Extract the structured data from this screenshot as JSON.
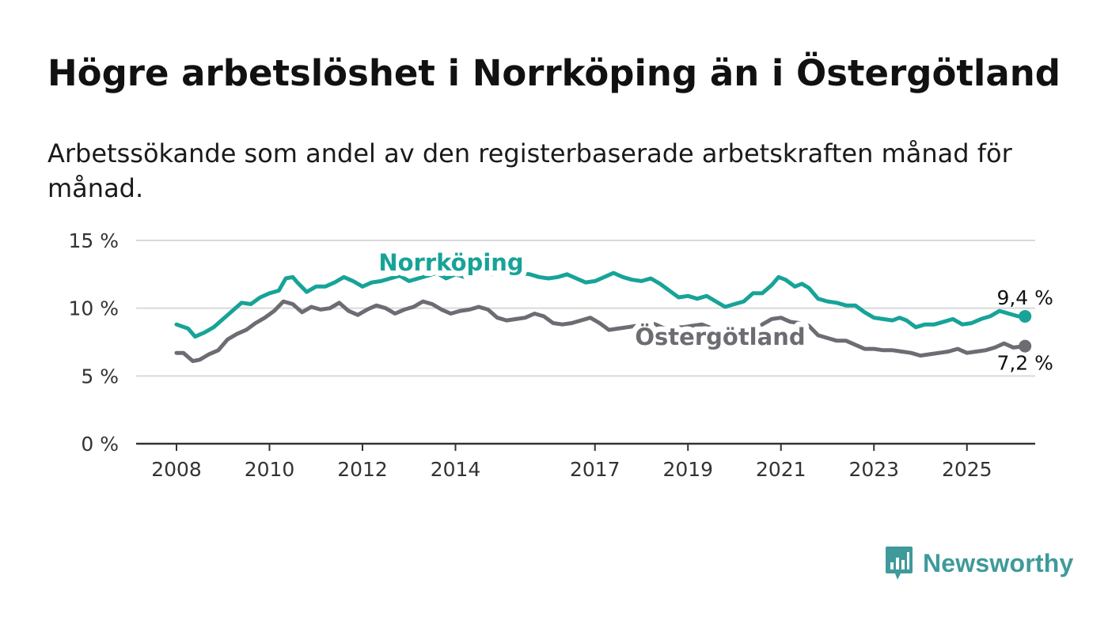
{
  "title": "Högre arbetslöshet i Norrköping än i Östergötland",
  "subtitle": "Arbetssökande som andel av den registerbaserade arbetskraften månad för månad.",
  "brand": {
    "name": "Newsworthy",
    "color": "#3f9a9b",
    "icon": "bar-chart-speech-bubble-icon"
  },
  "colors": {
    "norrkoping": "#17a398",
    "ostergotland": "#6e6b73",
    "grid": "#d9d9d9",
    "axis": "#333333"
  },
  "chart_data": {
    "type": "line",
    "title": "Högre arbetslöshet i Norrköping än i Östergötland",
    "subtitle": "Arbetssökande som andel av den registerbaserade arbetskraften månad för månad.",
    "xlim": [
      2007.5,
      2027.0
    ],
    "ylim": [
      0,
      15
    ],
    "y_ticks": [
      0,
      5,
      10,
      15
    ],
    "y_tick_labels": [
      "0 %",
      "5 %",
      "10 %",
      "15 %"
    ],
    "x_ticks": [
      2008,
      2010,
      2012,
      2014,
      2017,
      2019,
      2021,
      2023,
      2025
    ],
    "x_tick_labels": [
      "2008",
      "2010",
      "2012",
      "2014",
      "2017",
      "2019",
      "2021",
      "2023",
      "2025"
    ],
    "grid": true,
    "legend": "inline labels on lines",
    "series": [
      {
        "name": "Norrköping",
        "color": "#17a398",
        "end_label": "9,4 %",
        "points": [
          [
            2008.0,
            8.8
          ],
          [
            2008.25,
            8.5
          ],
          [
            2008.4,
            7.9
          ],
          [
            2008.6,
            8.2
          ],
          [
            2008.8,
            8.6
          ],
          [
            2009.0,
            9.2
          ],
          [
            2009.2,
            9.8
          ],
          [
            2009.4,
            10.4
          ],
          [
            2009.6,
            10.3
          ],
          [
            2009.8,
            10.8
          ],
          [
            2010.0,
            11.1
          ],
          [
            2010.2,
            11.3
          ],
          [
            2010.35,
            12.2
          ],
          [
            2010.5,
            12.3
          ],
          [
            2010.6,
            11.9
          ],
          [
            2010.8,
            11.2
          ],
          [
            2011.0,
            11.6
          ],
          [
            2011.2,
            11.6
          ],
          [
            2011.4,
            11.9
          ],
          [
            2011.6,
            12.3
          ],
          [
            2011.8,
            12.0
          ],
          [
            2012.0,
            11.6
          ],
          [
            2012.2,
            11.9
          ],
          [
            2012.4,
            12.0
          ],
          [
            2012.6,
            12.2
          ],
          [
            2012.8,
            12.4
          ],
          [
            2013.0,
            12.0
          ],
          [
            2013.2,
            12.2
          ],
          [
            2013.4,
            12.4
          ],
          [
            2013.6,
            12.6
          ],
          [
            2013.8,
            12.2
          ],
          [
            2014.0,
            12.5
          ],
          [
            2014.2,
            12.3
          ],
          [
            2014.4,
            12.6
          ],
          [
            2014.6,
            12.8
          ],
          [
            2014.8,
            12.5
          ],
          [
            2015.0,
            12.7
          ],
          [
            2015.2,
            12.8
          ],
          [
            2015.4,
            12.6
          ],
          [
            2015.6,
            12.5
          ],
          [
            2015.8,
            12.3
          ],
          [
            2016.0,
            12.2
          ],
          [
            2016.2,
            12.3
          ],
          [
            2016.4,
            12.5
          ],
          [
            2016.6,
            12.2
          ],
          [
            2016.8,
            11.9
          ],
          [
            2017.0,
            12.0
          ],
          [
            2017.2,
            12.3
          ],
          [
            2017.4,
            12.6
          ],
          [
            2017.6,
            12.3
          ],
          [
            2017.8,
            12.1
          ],
          [
            2018.0,
            12.0
          ],
          [
            2018.2,
            12.2
          ],
          [
            2018.4,
            11.8
          ],
          [
            2018.6,
            11.3
          ],
          [
            2018.8,
            10.8
          ],
          [
            2019.0,
            10.9
          ],
          [
            2019.2,
            10.7
          ],
          [
            2019.4,
            10.9
          ],
          [
            2019.6,
            10.5
          ],
          [
            2019.8,
            10.1
          ],
          [
            2020.0,
            10.3
          ],
          [
            2020.2,
            10.5
          ],
          [
            2020.4,
            11.1
          ],
          [
            2020.6,
            11.1
          ],
          [
            2020.8,
            11.7
          ],
          [
            2020.95,
            12.3
          ],
          [
            2021.1,
            12.1
          ],
          [
            2021.3,
            11.6
          ],
          [
            2021.45,
            11.8
          ],
          [
            2021.6,
            11.5
          ],
          [
            2021.8,
            10.7
          ],
          [
            2022.0,
            10.5
          ],
          [
            2022.2,
            10.4
          ],
          [
            2022.4,
            10.2
          ],
          [
            2022.6,
            10.2
          ],
          [
            2022.8,
            9.7
          ],
          [
            2023.0,
            9.3
          ],
          [
            2023.2,
            9.2
          ],
          [
            2023.4,
            9.1
          ],
          [
            2023.55,
            9.3
          ],
          [
            2023.7,
            9.1
          ],
          [
            2023.9,
            8.6
          ],
          [
            2024.1,
            8.8
          ],
          [
            2024.3,
            8.8
          ],
          [
            2024.5,
            9.0
          ],
          [
            2024.7,
            9.2
          ],
          [
            2024.9,
            8.8
          ],
          [
            2025.1,
            8.9
          ],
          [
            2025.3,
            9.2
          ],
          [
            2025.5,
            9.4
          ],
          [
            2025.7,
            9.8
          ],
          [
            2025.9,
            9.6
          ],
          [
            2026.1,
            9.4
          ],
          [
            2026.25,
            9.4
          ]
        ]
      },
      {
        "name": "Östergötland",
        "color": "#6e6b73",
        "end_label": "7,2 %",
        "points": [
          [
            2008.0,
            6.7
          ],
          [
            2008.15,
            6.7
          ],
          [
            2008.35,
            6.1
          ],
          [
            2008.5,
            6.2
          ],
          [
            2008.7,
            6.6
          ],
          [
            2008.9,
            6.9
          ],
          [
            2009.1,
            7.7
          ],
          [
            2009.3,
            8.1
          ],
          [
            2009.5,
            8.4
          ],
          [
            2009.7,
            8.9
          ],
          [
            2009.9,
            9.3
          ],
          [
            2010.1,
            9.8
          ],
          [
            2010.3,
            10.5
          ],
          [
            2010.5,
            10.3
          ],
          [
            2010.7,
            9.7
          ],
          [
            2010.9,
            10.1
          ],
          [
            2011.1,
            9.9
          ],
          [
            2011.3,
            10.0
          ],
          [
            2011.5,
            10.4
          ],
          [
            2011.7,
            9.8
          ],
          [
            2011.9,
            9.5
          ],
          [
            2012.1,
            9.9
          ],
          [
            2012.3,
            10.2
          ],
          [
            2012.5,
            10.0
          ],
          [
            2012.7,
            9.6
          ],
          [
            2012.9,
            9.9
          ],
          [
            2013.1,
            10.1
          ],
          [
            2013.3,
            10.5
          ],
          [
            2013.5,
            10.3
          ],
          [
            2013.7,
            9.9
          ],
          [
            2013.9,
            9.6
          ],
          [
            2014.1,
            9.8
          ],
          [
            2014.3,
            9.9
          ],
          [
            2014.5,
            10.1
          ],
          [
            2014.7,
            9.9
          ],
          [
            2014.9,
            9.3
          ],
          [
            2015.1,
            9.1
          ],
          [
            2015.3,
            9.2
          ],
          [
            2015.5,
            9.3
          ],
          [
            2015.7,
            9.6
          ],
          [
            2015.9,
            9.4
          ],
          [
            2016.1,
            8.9
          ],
          [
            2016.3,
            8.8
          ],
          [
            2016.5,
            8.9
          ],
          [
            2016.7,
            9.1
          ],
          [
            2016.9,
            9.3
          ],
          [
            2017.1,
            8.9
          ],
          [
            2017.3,
            8.4
          ],
          [
            2017.5,
            8.5
          ],
          [
            2017.7,
            8.6
          ],
          [
            2017.9,
            8.7
          ],
          [
            2018.1,
            9.0
          ],
          [
            2018.3,
            8.8
          ],
          [
            2018.5,
            8.5
          ],
          [
            2018.7,
            8.6
          ],
          [
            2018.9,
            8.6
          ],
          [
            2019.1,
            8.7
          ],
          [
            2019.3,
            8.8
          ],
          [
            2019.6,
            8.4
          ],
          [
            2019.8,
            8.2
          ],
          [
            2020.0,
            8.1
          ],
          [
            2020.2,
            7.8
          ],
          [
            2020.4,
            8.2
          ],
          [
            2020.6,
            8.8
          ],
          [
            2020.8,
            9.2
          ],
          [
            2021.0,
            9.3
          ],
          [
            2021.2,
            9.0
          ],
          [
            2021.4,
            8.9
          ],
          [
            2021.6,
            8.7
          ],
          [
            2021.8,
            8.0
          ],
          [
            2022.0,
            7.8
          ],
          [
            2022.2,
            7.6
          ],
          [
            2022.4,
            7.6
          ],
          [
            2022.6,
            7.3
          ],
          [
            2022.8,
            7.0
          ],
          [
            2023.0,
            7.0
          ],
          [
            2023.2,
            6.9
          ],
          [
            2023.4,
            6.9
          ],
          [
            2023.6,
            6.8
          ],
          [
            2023.8,
            6.7
          ],
          [
            2024.0,
            6.5
          ],
          [
            2024.2,
            6.6
          ],
          [
            2024.4,
            6.7
          ],
          [
            2024.6,
            6.8
          ],
          [
            2024.8,
            7.0
          ],
          [
            2025.0,
            6.7
          ],
          [
            2025.2,
            6.8
          ],
          [
            2025.4,
            6.9
          ],
          [
            2025.6,
            7.1
          ],
          [
            2025.8,
            7.4
          ],
          [
            2026.0,
            7.1
          ],
          [
            2026.25,
            7.2
          ]
        ]
      }
    ]
  }
}
